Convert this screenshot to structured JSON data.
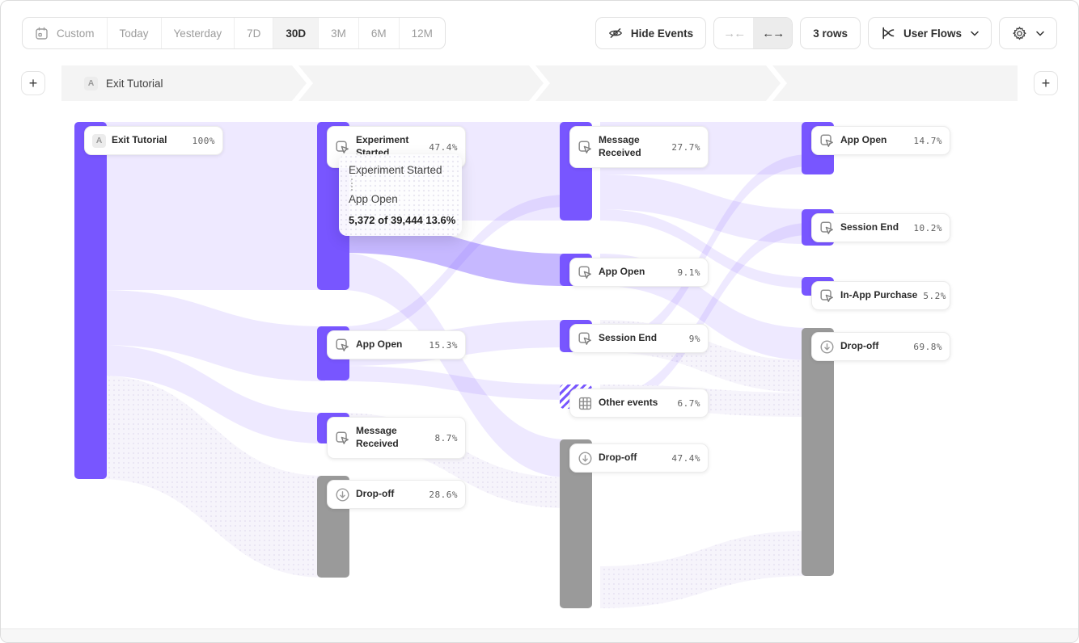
{
  "toolbar": {
    "date_ranges": [
      {
        "label": "Custom",
        "icon": "calendar-icon",
        "selected": false
      },
      {
        "label": "Today",
        "selected": false
      },
      {
        "label": "Yesterday",
        "selected": false
      },
      {
        "label": "7D",
        "selected": false
      },
      {
        "label": "30D",
        "selected": true
      },
      {
        "label": "3M",
        "selected": false
      },
      {
        "label": "6M",
        "selected": false
      },
      {
        "label": "12M",
        "selected": false
      }
    ],
    "hide_events_label": "Hide Events",
    "rows_label": "3 rows",
    "view_label": "User Flows"
  },
  "steps": {
    "badge": "A",
    "label": "Exit Tutorial",
    "segment_count": 4
  },
  "tooltip": {
    "from": "Experiment Started",
    "to": "App Open",
    "detail": "5,372 of 39,444 13.6%"
  },
  "chart_data": {
    "type": "sankey",
    "title": "User Flows",
    "columns": [
      {
        "nodes": [
          {
            "label": "Exit Tutorial",
            "pct": "100%",
            "value": 100,
            "kind": "start"
          }
        ]
      },
      {
        "nodes": [
          {
            "label": "Experiment Started",
            "pct": "47.4%",
            "value": 47.4,
            "kind": "event"
          },
          {
            "label": "App Open",
            "pct": "15.3%",
            "value": 15.3,
            "kind": "event"
          },
          {
            "label": "Message Received",
            "pct": "8.7%",
            "value": 8.7,
            "kind": "event"
          },
          {
            "label": "Drop-off",
            "pct": "28.6%",
            "value": 28.6,
            "kind": "dropoff"
          }
        ]
      },
      {
        "nodes": [
          {
            "label": "Message Received",
            "pct": "27.7%",
            "value": 27.7,
            "kind": "event"
          },
          {
            "label": "App Open",
            "pct": "9.1%",
            "value": 9.1,
            "kind": "event"
          },
          {
            "label": "Session End",
            "pct": "9%",
            "value": 9,
            "kind": "event"
          },
          {
            "label": "Other events",
            "pct": "6.7%",
            "value": 6.7,
            "kind": "other"
          },
          {
            "label": "Drop-off",
            "pct": "47.4%",
            "value": 47.4,
            "kind": "dropoff"
          }
        ]
      },
      {
        "nodes": [
          {
            "label": "App Open",
            "pct": "14.7%",
            "value": 14.7,
            "kind": "event"
          },
          {
            "label": "Session End",
            "pct": "10.2%",
            "value": 10.2,
            "kind": "event"
          },
          {
            "label": "In-App Purchase",
            "pct": "5.2%",
            "value": 5.2,
            "kind": "event"
          },
          {
            "label": "Drop-off",
            "pct": "69.8%",
            "value": 69.8,
            "kind": "dropoff"
          }
        ]
      }
    ],
    "highlighted_flow": {
      "from": "Experiment Started",
      "to": "App Open",
      "count": "5,372",
      "total": "39,444",
      "pct": "13.6%"
    }
  },
  "colors": {
    "accent": "#7856FF",
    "dropoff": "#9a9a9a",
    "flow_light": "rgba(120,86,255,0.13)",
    "flow_highlight": "rgba(120,86,255,0.42)"
  }
}
